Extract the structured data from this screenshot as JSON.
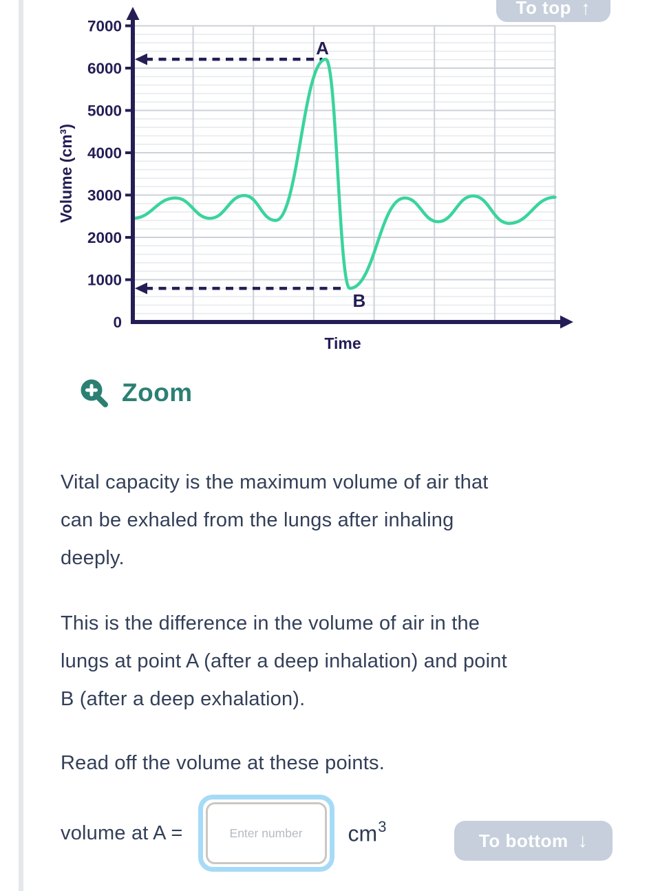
{
  "colors": {
    "navy": "#241e55",
    "body_text": "#333f58",
    "curve_green": "#3ad49c",
    "teal": "#2b8073",
    "button_bg": "#c6cfdb",
    "button_text": "#ffffff",
    "grid_major": "#cdd1d9",
    "grid_minor": "#e8eaee",
    "input_ring_blue": "#a6dbf7",
    "input_border_gray": "#cac7c4",
    "placeholder_gray": "#b4bac4"
  },
  "nav": {
    "to_top_label": "To top",
    "to_top_arrow": "↑",
    "to_bottom_label": "To bottom",
    "to_bottom_arrow": "↓"
  },
  "zoom_link": {
    "label": "Zoom"
  },
  "chart_data": {
    "type": "line",
    "title": "",
    "xlabel": "Time",
    "ylabel": "Volume (cm³)",
    "ylim": [
      0,
      7000
    ],
    "y_ticks": [
      0,
      1000,
      2000,
      3000,
      4000,
      5000,
      6000,
      7000
    ],
    "y_minor_step": 200,
    "x_tick_labels": [],
    "grid": "on",
    "series": [
      {
        "name": "lung-volume-trace",
        "color": "#3ad49c",
        "points": [
          [
            0.0,
            2450
          ],
          [
            0.101,
            2930
          ],
          [
            0.183,
            2450
          ],
          [
            0.264,
            2990
          ],
          [
            0.338,
            2400
          ],
          [
            0.457,
            6210
          ],
          [
            0.514,
            795
          ],
          [
            0.644,
            2930
          ],
          [
            0.723,
            2370
          ],
          [
            0.806,
            2980
          ],
          [
            0.891,
            2330
          ],
          [
            1.0,
            2950
          ]
        ]
      }
    ],
    "annotations": [
      {
        "label": "A",
        "value": 6210,
        "line_end": 0.449,
        "label_pos": 0.449,
        "label_side": "above",
        "meaning": "volume after a deep inhalation, read off ≈ 6200 cm³"
      },
      {
        "label": "B",
        "value": 795,
        "line_end": 0.504,
        "label_pos": 0.536,
        "label_side": "below",
        "meaning": "volume after a deep exhalation, read off ≈ 800 cm³"
      }
    ]
  },
  "paragraphs": {
    "p1": "Vital capacity is the maximum volume of air that\ncan be exhaled from the lungs after inhaling\ndeeply.",
    "p2": "This is the difference in the volume of air in the\nlungs at point A (after a deep inhalation) and point\nB (after a deep exhalation).",
    "p3": "Read off the volume at these points."
  },
  "answer": {
    "label": "volume at A =",
    "placeholder": "Enter number",
    "unit_base": "cm",
    "unit_exp": "3"
  }
}
